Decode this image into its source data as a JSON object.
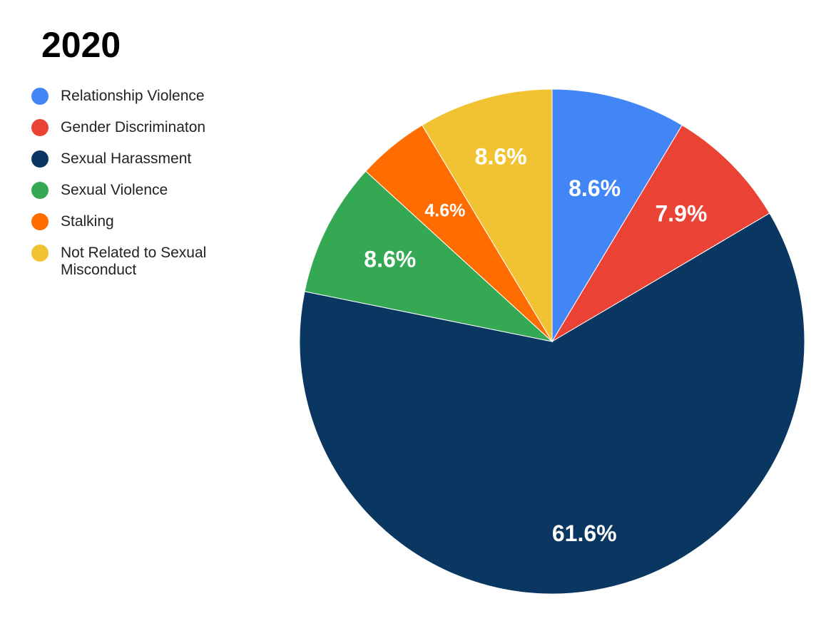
{
  "chart_data": {
    "type": "pie",
    "title": "2020",
    "legend_position": "left",
    "start_angle_deg": 0,
    "direction": "clockwise",
    "slices": [
      {
        "name": "Relationship Violence",
        "value": 8.6,
        "label": "8.6%",
        "color": "#4285F4"
      },
      {
        "name": "Gender Discriminaton",
        "value": 7.9,
        "label": "7.9%",
        "color": "#EA4335"
      },
      {
        "name": "Sexual Harassment",
        "value": 61.6,
        "label": "61.6%",
        "color": "#093762"
      },
      {
        "name": "Sexual Violence",
        "value": 8.6,
        "label": "8.6%",
        "color": "#34A853"
      },
      {
        "name": "Stalking",
        "value": 4.6,
        "label": "4.6%",
        "color": "#FF6D01"
      },
      {
        "name": "Not Related to Sexual Misconduct",
        "value": 8.6,
        "label": "8.6%",
        "color": "#F1C232"
      }
    ]
  }
}
